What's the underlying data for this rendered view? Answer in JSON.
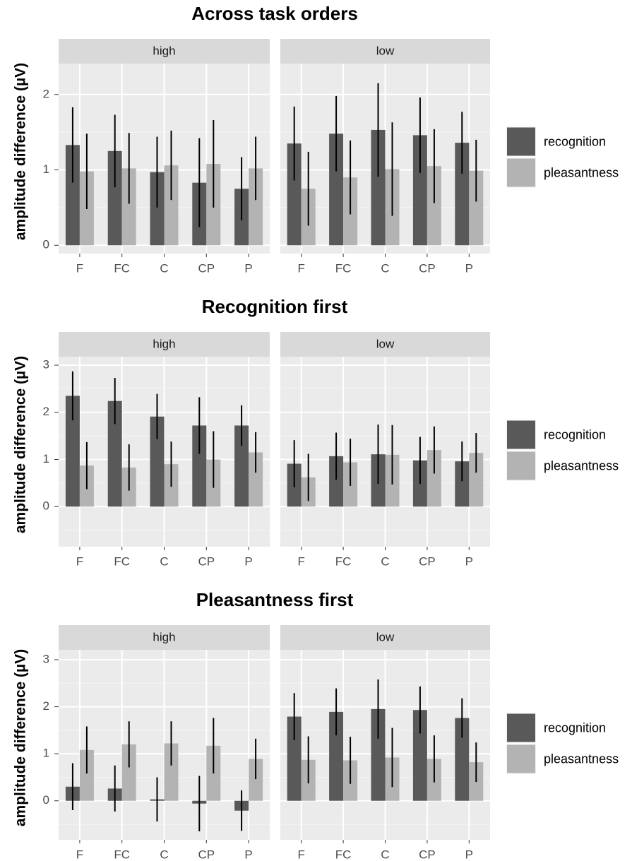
{
  "chart_data": [
    {
      "type": "bar",
      "title": "Across task orders",
      "y_label": "amplitude difference (µV)",
      "facets": [
        "high",
        "low"
      ],
      "categories": [
        "F",
        "FC",
        "C",
        "CP",
        "P"
      ],
      "ylim": [
        -0.11,
        2.41
      ],
      "yticks": [
        0,
        1,
        2
      ],
      "grid": true,
      "series": [
        {
          "name": "recognition",
          "color": "#595959",
          "values": [
            [
              1.33,
              1.25,
              0.97,
              0.83,
              0.75
            ],
            [
              1.35,
              1.48,
              1.53,
              1.46,
              1.36
            ]
          ],
          "errors": [
            [
              0.5,
              0.48,
              0.47,
              0.59,
              0.42
            ],
            [
              0.49,
              0.5,
              0.62,
              0.5,
              0.41
            ]
          ]
        },
        {
          "name": "pleasantness",
          "color": "#b3b3b3",
          "values": [
            [
              0.98,
              1.02,
              1.06,
              1.08,
              1.02
            ],
            [
              0.75,
              0.9,
              1.01,
              1.05,
              0.99
            ]
          ],
          "errors": [
            [
              0.5,
              0.47,
              0.46,
              0.58,
              0.42
            ],
            [
              0.49,
              0.49,
              0.62,
              0.49,
              0.41
            ]
          ]
        }
      ]
    },
    {
      "type": "bar",
      "title": "Recognition first",
      "y_label": "amplitude difference (µV)",
      "facets": [
        "high",
        "low"
      ],
      "categories": [
        "F",
        "FC",
        "C",
        "CP",
        "P"
      ],
      "ylim": [
        -0.85,
        3.18
      ],
      "yticks": [
        0,
        1,
        2,
        3
      ],
      "grid": true,
      "series": [
        {
          "name": "recognition",
          "color": "#595959",
          "values": [
            [
              2.35,
              2.24,
              1.91,
              1.72,
              1.72
            ],
            [
              0.91,
              1.07,
              1.11,
              0.98,
              0.96
            ]
          ],
          "errors": [
            [
              0.52,
              0.49,
              0.48,
              0.6,
              0.43
            ],
            [
              0.5,
              0.5,
              0.63,
              0.5,
              0.42
            ]
          ]
        },
        {
          "name": "pleasantness",
          "color": "#b3b3b3",
          "values": [
            [
              0.87,
              0.83,
              0.9,
              1.0,
              1.15
            ],
            [
              0.62,
              0.94,
              1.1,
              1.2,
              1.14
            ]
          ],
          "errors": [
            [
              0.5,
              0.49,
              0.48,
              0.6,
              0.43
            ],
            [
              0.5,
              0.5,
              0.63,
              0.5,
              0.42
            ]
          ]
        }
      ]
    },
    {
      "type": "bar",
      "title": "Pleasantness first",
      "y_label": "amplitude difference (µV)",
      "facets": [
        "high",
        "low"
      ],
      "categories": [
        "F",
        "FC",
        "C",
        "CP",
        "P"
      ],
      "ylim": [
        -0.83,
        3.21
      ],
      "yticks": [
        0,
        1,
        2,
        3
      ],
      "grid": true,
      "series": [
        {
          "name": "recognition",
          "color": "#595959",
          "values": [
            [
              0.3,
              0.26,
              0.03,
              -0.06,
              -0.21
            ],
            [
              1.79,
              1.89,
              1.95,
              1.93,
              1.76
            ]
          ],
          "errors": [
            [
              0.5,
              0.49,
              0.47,
              0.59,
              0.43
            ],
            [
              0.5,
              0.5,
              0.63,
              0.5,
              0.42
            ]
          ]
        },
        {
          "name": "pleasantness",
          "color": "#b3b3b3",
          "values": [
            [
              1.08,
              1.2,
              1.22,
              1.17,
              0.89
            ],
            [
              0.87,
              0.86,
              0.92,
              0.89,
              0.82
            ]
          ],
          "errors": [
            [
              0.5,
              0.49,
              0.47,
              0.59,
              0.43
            ],
            [
              0.5,
              0.5,
              0.63,
              0.5,
              0.42
            ]
          ]
        }
      ]
    }
  ]
}
